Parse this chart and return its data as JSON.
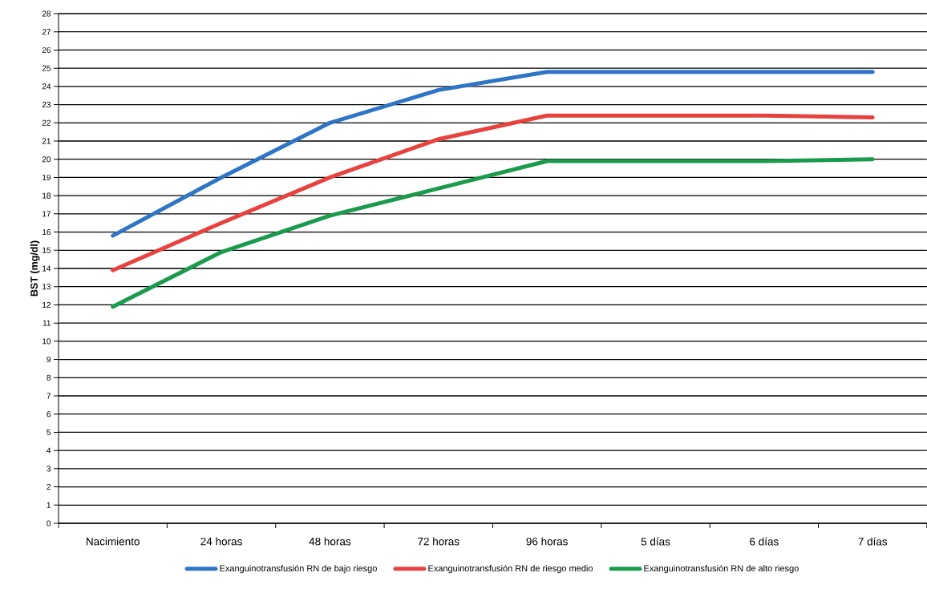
{
  "chart_data": {
    "type": "line",
    "ylabel": "BST (mg/dl)",
    "categories": [
      "Nacimiento",
      "24 horas",
      "48 horas",
      "72 horas",
      "96 horas",
      "5 días",
      "6 días",
      "7 días"
    ],
    "series": [
      {
        "name": "Exanguinotransfusión RN de bajo riesgo",
        "color": "#2e75c6",
        "values": [
          15.8,
          19,
          22,
          23.8,
          24.8,
          24.8,
          24.8,
          24.8
        ]
      },
      {
        "name": "Exanguinotransfusión RN de riesgo medio",
        "color": "#e8423f",
        "values": [
          13.9,
          16.5,
          19,
          21.1,
          22.4,
          22.4,
          22.4,
          22.3
        ]
      },
      {
        "name": "Exanguinotransfusión RN de alto riesgo",
        "color": "#1a9a4c",
        "values": [
          11.9,
          14.9,
          16.9,
          18.4,
          19.9,
          19.9,
          19.9,
          20
        ]
      }
    ],
    "ylim": [
      0,
      28
    ],
    "yticks": [
      0,
      1,
      2,
      3,
      4,
      5,
      6,
      7,
      8,
      9,
      10,
      11,
      12,
      13,
      14,
      15,
      16,
      17,
      18,
      19,
      20,
      21,
      22,
      23,
      24,
      25,
      26,
      27,
      28
    ],
    "grid": "y",
    "legend": "bottom",
    "marker": "none",
    "line_style": "solid"
  }
}
